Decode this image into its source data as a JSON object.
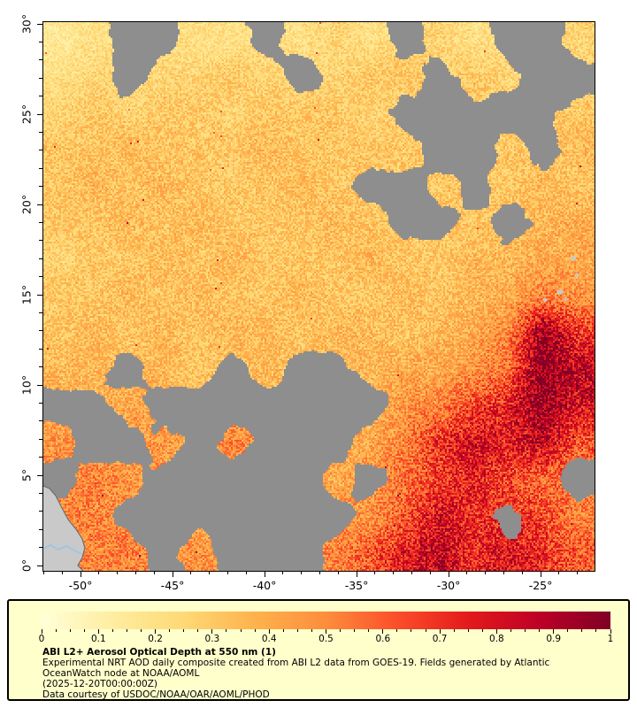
{
  "legend": {
    "title": "ABI L2+ Aerosol Optical Depth at 550 nm (1)",
    "lines": [
      "Experimental NRT AOD daily composite created from ABI L2 data from GOES-19. Fields generated by Atlantic",
      "OceanWatch node at NOAA/AOML",
      "(2025-12-20T00:00:00Z)",
      "Data courtesy of USDOC/NOAA/OAR/AOML/PHOD"
    ]
  },
  "chart_data": {
    "type": "heatmap",
    "title": "ABI L2+ Aerosol Optical Depth at 550 nm (1)",
    "xlabel": "",
    "ylabel": "",
    "xlim": [
      -52.02,
      -22.07
    ],
    "ylim": [
      -0.29,
      30.1
    ],
    "x_ticks": [
      {
        "label": "-50°",
        "value": -50
      },
      {
        "label": "-45°",
        "value": -45
      },
      {
        "label": "-40°",
        "value": -40
      },
      {
        "label": "-35°",
        "value": -35
      },
      {
        "label": "-30°",
        "value": -30
      },
      {
        "label": "-25°",
        "value": -25
      }
    ],
    "y_ticks": [
      {
        "label": "30°",
        "value": 30
      },
      {
        "label": "25°",
        "value": 25
      },
      {
        "label": "20°",
        "value": 20
      },
      {
        "label": "15°",
        "value": 15
      },
      {
        "label": "10°",
        "value": 10
      },
      {
        "label": "5°",
        "value": 5
      },
      {
        "label": "0°",
        "value": 0
      }
    ],
    "minor_tick_step_deg": 1,
    "colorbar": {
      "range": [
        0,
        1
      ],
      "tick_labels": [
        "0",
        "0.1",
        "0.2",
        "0.3",
        "0.4",
        "0.5",
        "0.6",
        "0.7",
        "0.8",
        "0.9",
        "1"
      ],
      "tick_values": [
        0,
        0.1,
        0.2,
        0.3,
        0.4,
        0.5,
        0.6,
        0.7,
        0.8,
        0.9,
        1
      ],
      "minor_tick_step": 0.025,
      "colormap": "YlOrRd"
    },
    "colors": {
      "colormap_stops": [
        [
          0.0,
          "#ffffd9"
        ],
        [
          0.125,
          "#ffeda0"
        ],
        [
          0.25,
          "#fed976"
        ],
        [
          0.375,
          "#feb24c"
        ],
        [
          0.5,
          "#fd8d3c"
        ],
        [
          0.625,
          "#fc4e2a"
        ],
        [
          0.75,
          "#e31a1c"
        ],
        [
          0.875,
          "#bd0026"
        ],
        [
          1.0,
          "#800026"
        ]
      ],
      "no_data_gray": "#8e8e8e",
      "land_gray": "#c9c9c9",
      "coastline": "#6e6e6e",
      "river_blue": "#9cc4e4",
      "legend_bg": "#ffffcc",
      "legend_border": "#000000",
      "background": "#ffffff"
    },
    "aod_grid": {
      "note": "Approximate AOD (550 nm) values read from the map on a ~1.9 deg grid; null = gray no-data (cloud/no retrieval); 'land' = land mask (South America, bottom-left).",
      "lon_range": [
        -52.02,
        -22.07
      ],
      "lat_range": [
        30.1,
        -0.29
      ],
      "values": [
        [
          0.15,
          0.2,
          null,
          null,
          0.2,
          0.2,
          null,
          0.2,
          0.25,
          0.2,
          null,
          0.25,
          0.2,
          null,
          null,
          0.25
        ],
        [
          0.2,
          0.25,
          null,
          0.25,
          0.25,
          0.3,
          0.25,
          null,
          0.25,
          0.3,
          0.3,
          null,
          0.3,
          0.25,
          null,
          null
        ],
        [
          0.25,
          0.3,
          0.25,
          0.3,
          0.3,
          0.25,
          0.3,
          0.3,
          0.3,
          0.25,
          null,
          null,
          null,
          null,
          null,
          0.3
        ],
        [
          0.3,
          0.3,
          0.35,
          0.3,
          0.3,
          0.3,
          0.35,
          0.3,
          0.3,
          0.3,
          0.3,
          null,
          null,
          0.3,
          null,
          0.35
        ],
        [
          0.3,
          0.35,
          0.3,
          0.35,
          0.3,
          0.3,
          0.3,
          0.35,
          0.3,
          null,
          null,
          0.3,
          null,
          0.3,
          0.35,
          0.3
        ],
        [
          0.3,
          0.3,
          0.35,
          0.3,
          0.35,
          0.3,
          0.3,
          0.3,
          0.35,
          0.3,
          null,
          null,
          0.3,
          null,
          0.35,
          0.4
        ],
        [
          0.25,
          0.3,
          0.3,
          0.35,
          0.3,
          0.35,
          0.3,
          0.3,
          0.3,
          0.35,
          0.3,
          0.3,
          0.35,
          0.35,
          0.4,
          0.4
        ],
        [
          0.3,
          0.3,
          0.35,
          0.3,
          0.35,
          0.3,
          0.3,
          0.35,
          0.3,
          0.3,
          0.35,
          0.3,
          0.35,
          0.4,
          0.5,
          0.45
        ],
        [
          0.3,
          0.35,
          0.3,
          0.35,
          0.3,
          0.35,
          0.35,
          0.3,
          0.35,
          0.35,
          0.3,
          0.35,
          0.4,
          0.5,
          0.95,
          0.7
        ],
        [
          0.35,
          0.35,
          null,
          0.35,
          0.3,
          null,
          0.35,
          null,
          null,
          0.35,
          0.4,
          0.4,
          0.45,
          0.55,
          1.0,
          0.85
        ],
        [
          null,
          null,
          0.4,
          null,
          null,
          null,
          null,
          null,
          null,
          null,
          0.45,
          0.5,
          0.65,
          0.75,
          0.95,
          0.8
        ],
        [
          0.45,
          null,
          null,
          0.45,
          null,
          0.5,
          null,
          null,
          null,
          0.4,
          0.5,
          0.7,
          0.8,
          0.75,
          0.85,
          0.6
        ],
        [
          null,
          0.5,
          0.45,
          null,
          null,
          null,
          null,
          null,
          0.4,
          null,
          0.55,
          0.65,
          0.75,
          0.65,
          0.55,
          null
        ],
        [
          "land",
          0.5,
          null,
          null,
          null,
          null,
          null,
          null,
          null,
          0.45,
          0.6,
          0.8,
          0.7,
          null,
          0.65,
          0.5
        ],
        [
          "land",
          "land",
          0.5,
          null,
          0.45,
          null,
          null,
          null,
          0.5,
          0.6,
          0.75,
          0.85,
          0.7,
          0.8,
          0.7,
          0.6
        ]
      ]
    },
    "annotations": {
      "land_visible": "South America coast with river at bottom-left; small Cape Verde islands near right edge (~15N, -24W)",
      "gray_meaning": "no data"
    }
  }
}
